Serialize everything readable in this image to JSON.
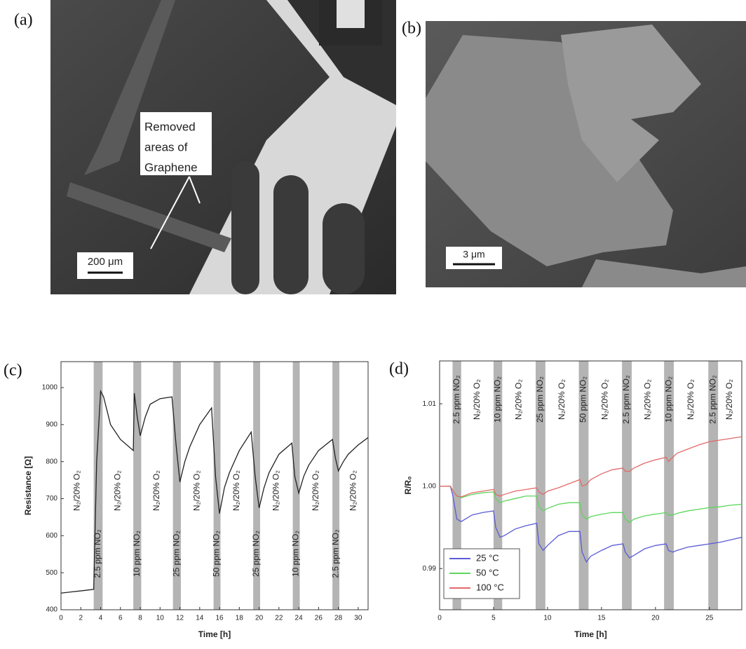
{
  "images": [
    {
      "label": "(a)",
      "annotation": [
        "Removed",
        "areas of",
        "Graphene"
      ],
      "scale_bar": "200 μm"
    },
    {
      "label": "(b)",
      "scale_bar": "3 μm"
    }
  ],
  "chart_data": [
    {
      "type": "line",
      "label": "(c)",
      "x_label": "Time [h]",
      "y_label": "Resistance [Ω]",
      "x": [
        0,
        1,
        2,
        3.3,
        3.6,
        4,
        4.3,
        5,
        6,
        7.3,
        7.4,
        7.7,
        8,
        8.5,
        9,
        10,
        11.2,
        11.6,
        12,
        12.5,
        13,
        14,
        15.2,
        15.6,
        16,
        16.5,
        17,
        18,
        19.2,
        19.6,
        20,
        20.5,
        21,
        22,
        23.3,
        23.6,
        24,
        24.5,
        25,
        26,
        27.4,
        27.7,
        28,
        28.5,
        29,
        30,
        31
      ],
      "series": [
        {
          "color": "#222222",
          "values": [
            445,
            448,
            451,
            455,
            800,
            990,
            975,
            900,
            860,
            830,
            985,
            920,
            870,
            920,
            955,
            970,
            975,
            850,
            745,
            800,
            840,
            900,
            945,
            760,
            660,
            730,
            770,
            830,
            880,
            760,
            675,
            730,
            770,
            820,
            850,
            760,
            715,
            760,
            790,
            830,
            860,
            810,
            775,
            800,
            820,
            845,
            865
          ]
        }
      ],
      "bands": [
        [
          3.3,
          4.2
        ],
        [
          7.3,
          8.1
        ],
        [
          11.3,
          12.1
        ],
        [
          15.4,
          16.1
        ],
        [
          19.4,
          20.1
        ],
        [
          23.4,
          24.1
        ],
        [
          27.4,
          28.1
        ]
      ],
      "annotations": [
        "N₂/20% O₂",
        "2.5 ppm NO₂",
        "N₂/20% O₂",
        "10 ppm NO₂",
        "N₂/20% O₂",
        "25 ppm NO₂",
        "N₂/20% O₂",
        "50 ppm NO₂",
        "N₂/20% O₂",
        "25 ppm NO₂",
        "N₂/20% O₂",
        "10 ppm NO₂",
        "N₂/20% O₂",
        "2.5 ppm NO₂",
        "N₂/20% O₂"
      ],
      "xlim": [
        0,
        31
      ],
      "ylim": [
        400,
        1070
      ],
      "xticks": [
        0,
        2,
        4,
        6,
        8,
        10,
        12,
        14,
        16,
        18,
        20,
        22,
        24,
        26,
        28,
        30
      ],
      "yticks": [
        400,
        500,
        600,
        700,
        800,
        900,
        1000
      ]
    },
    {
      "type": "line",
      "label": "(d)",
      "x_label": "Time [h]",
      "y_label": "R/R₀",
      "x": [
        0,
        1,
        1.2,
        1.6,
        2,
        3,
        4,
        5,
        5.2,
        5.6,
        6,
        7,
        8,
        9,
        9.2,
        9.6,
        10,
        11,
        12,
        13,
        13.2,
        13.6,
        14,
        15,
        16,
        17,
        17.2,
        17.6,
        18,
        19,
        20,
        21,
        21.2,
        21.6,
        22,
        23,
        24,
        25,
        26,
        27,
        28
      ],
      "series": [
        {
          "name": "25 °C",
          "color": "#5b5bd6",
          "values": [
            1.0,
            1.0,
            0.999,
            0.996,
            0.9957,
            0.9965,
            0.9968,
            0.997,
            0.995,
            0.9938,
            0.994,
            0.9948,
            0.9952,
            0.9955,
            0.993,
            0.9922,
            0.9928,
            0.994,
            0.9945,
            0.9945,
            0.992,
            0.9908,
            0.9915,
            0.9922,
            0.9928,
            0.993,
            0.992,
            0.9913,
            0.9916,
            0.9924,
            0.9928,
            0.993,
            0.9922,
            0.992,
            0.9922,
            0.9926,
            0.9928,
            0.993,
            0.9932,
            0.9935,
            0.9938
          ]
        },
        {
          "name": "50 °C",
          "color": "#5cd65c",
          "values": [
            1.0,
            1.0,
            0.9995,
            0.9988,
            0.9986,
            0.999,
            0.9992,
            0.9993,
            0.9985,
            0.998,
            0.9982,
            0.9985,
            0.9988,
            0.9988,
            0.9975,
            0.997,
            0.9973,
            0.9978,
            0.998,
            0.998,
            0.9965,
            0.996,
            0.9963,
            0.9966,
            0.9968,
            0.9968,
            0.996,
            0.9956,
            0.996,
            0.9964,
            0.9966,
            0.9968,
            0.9965,
            0.9965,
            0.9967,
            0.997,
            0.9972,
            0.9974,
            0.9975,
            0.9977,
            0.9978
          ]
        },
        {
          "name": "100 °C",
          "color": "#e46a6a",
          "values": [
            1.0,
            1.0,
            0.9995,
            0.9988,
            0.9987,
            0.9992,
            0.9994,
            0.9996,
            0.999,
            0.9988,
            0.999,
            0.9994,
            0.9996,
            0.9998,
            0.9993,
            0.999,
            0.9994,
            0.9998,
            1.0003,
            1.0008,
            1.0,
            1.0002,
            1.0008,
            1.0015,
            1.002,
            1.0022,
            1.0018,
            1.0018,
            1.0022,
            1.0028,
            1.0032,
            1.0035,
            1.003,
            1.0035,
            1.004,
            1.0045,
            1.005,
            1.0054,
            1.0056,
            1.0058,
            1.006
          ]
        }
      ],
      "bands": [
        [
          1.2,
          2.0
        ],
        [
          5.0,
          5.8
        ],
        [
          8.9,
          9.8
        ],
        [
          12.9,
          13.8
        ],
        [
          16.9,
          17.8
        ],
        [
          20.8,
          21.7
        ],
        [
          24.9,
          25.8
        ]
      ],
      "annotations": [
        "2.5 ppm NO₂",
        "N₂/20% O₂",
        "10 ppm NO₂",
        "N₂/20% O₂",
        "25 ppm NO₂",
        "N₂/20% O₂",
        "50 ppm NO₂",
        "N₂/20% O₂",
        "2.5 ppm NO₂",
        "N₂/20% O₂",
        "10 ppm NO₂",
        "N₂/20% O₂",
        "2.5 ppm NO₂",
        "N₂/20% O₂"
      ],
      "xlim": [
        0,
        28
      ],
      "ylim": [
        0.985,
        1.0152
      ],
      "xticks": [
        0,
        5,
        10,
        15,
        20,
        25
      ],
      "yticks": [
        0.99,
        {
          "value": 1.0,
          "label": "1.00"
        },
        1.01
      ],
      "legend": "lower left"
    }
  ]
}
